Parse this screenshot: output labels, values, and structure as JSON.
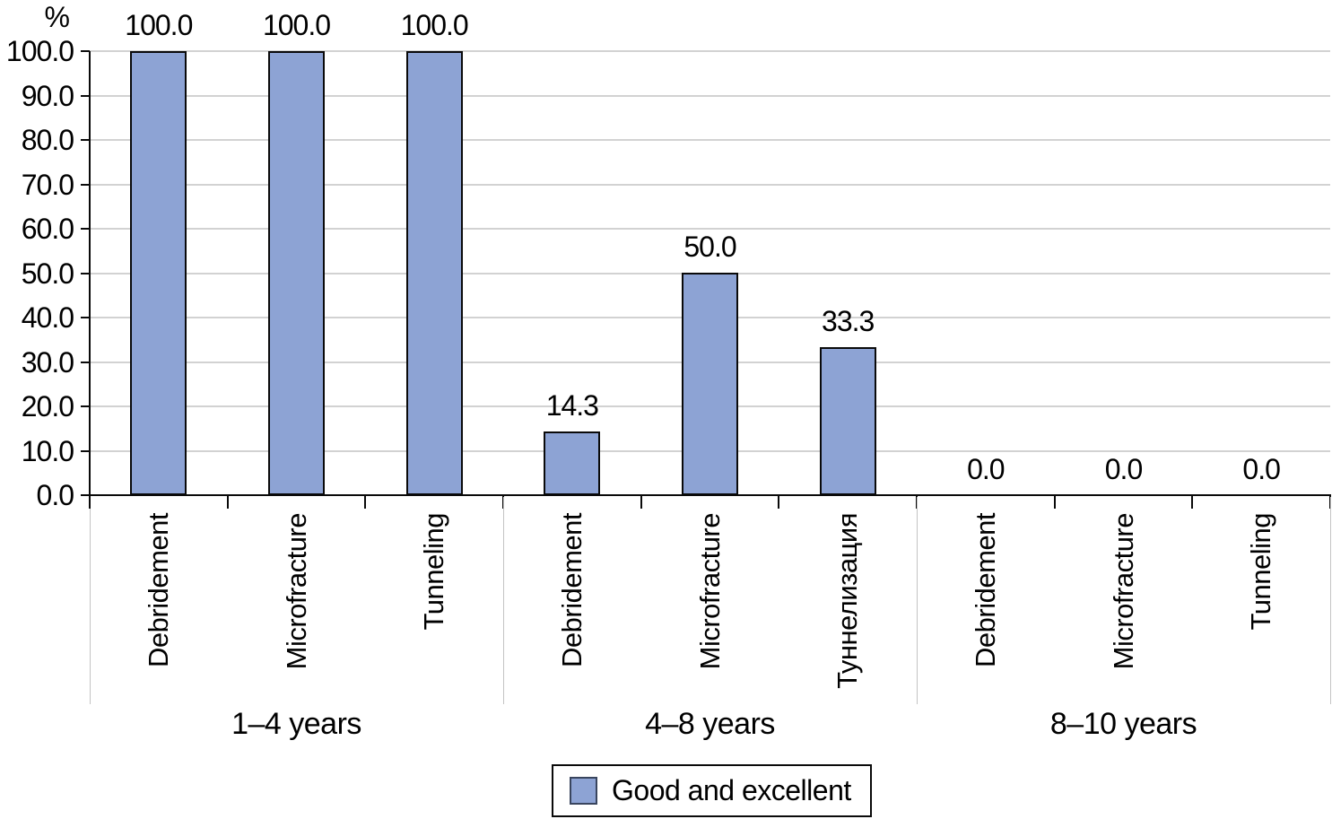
{
  "chart_data": {
    "type": "bar",
    "title": "",
    "unit_label": "%",
    "ylim": [
      0,
      100
    ],
    "ytick_step": 10,
    "ytick_labels": [
      "100.0",
      "90.0",
      "80.0",
      "70.0",
      "60.0",
      "50.0",
      "40.0",
      "30.0",
      "20.0",
      "10.0",
      "0.0"
    ],
    "grid": "horizontal",
    "legend_position": "bottom-center",
    "legend": {
      "label": "Good and excellent"
    },
    "groups": [
      {
        "label": "1–4 years",
        "bars": [
          {
            "category": "Debridement",
            "value": 100.0,
            "value_label": "100.0"
          },
          {
            "category": "Microfracture",
            "value": 100.0,
            "value_label": "100.0"
          },
          {
            "category": "Tunneling",
            "value": 100.0,
            "value_label": "100.0"
          }
        ]
      },
      {
        "label": "4–8 years",
        "bars": [
          {
            "category": "Debridement",
            "value": 14.3,
            "value_label": "14.3"
          },
          {
            "category": "Microfracture",
            "value": 50.0,
            "value_label": "50.0"
          },
          {
            "category": "Туннелизация",
            "value": 33.3,
            "value_label": "33.3"
          }
        ]
      },
      {
        "label": "8–10 years",
        "bars": [
          {
            "category": "Debridement",
            "value": 0.0,
            "value_label": "0.0"
          },
          {
            "category": "Microfracture",
            "value": 0.0,
            "value_label": "0.0"
          },
          {
            "category": "Tunneling",
            "value": 0.0,
            "value_label": "0.0"
          }
        ]
      }
    ],
    "colors": {
      "bar_fill": "#8da3d4",
      "bar_border": "#0a0a0a",
      "gridline": "#d2d2d2",
      "axis": "#0a0a0a"
    }
  }
}
